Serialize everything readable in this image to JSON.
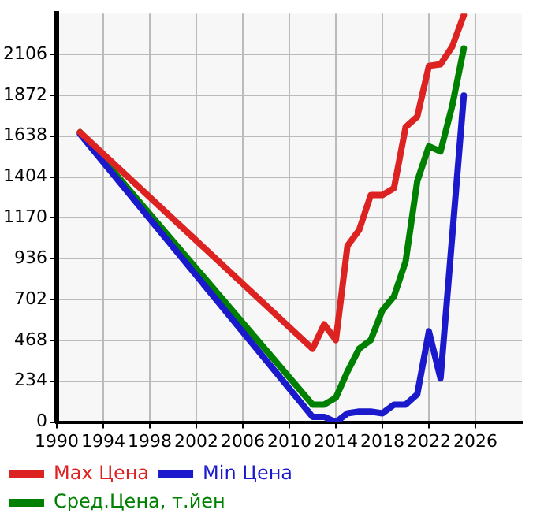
{
  "chart_data": {
    "type": "line",
    "x": [
      1992,
      2012,
      2013,
      2014,
      2015,
      2016,
      2017,
      2018,
      2019,
      2020,
      2021,
      2022,
      2023,
      2024,
      2025
    ],
    "series": [
      {
        "name": "Max Цена",
        "color": "#dd2222",
        "values": [
          1660,
          420,
          560,
          470,
          1010,
          1100,
          1300,
          1300,
          1340,
          1690,
          1750,
          2040,
          2050,
          2150,
          2330
        ]
      },
      {
        "name": "Min Цена",
        "color": "#1a1acc",
        "values": [
          1650,
          30,
          30,
          0,
          50,
          60,
          60,
          50,
          100,
          100,
          160,
          520,
          250,
          null,
          1870
        ]
      },
      {
        "name": "Сред.Цена, т.йен",
        "color": "#008000",
        "values": [
          1660,
          100,
          100,
          140,
          290,
          420,
          470,
          640,
          720,
          920,
          1380,
          1580,
          1550,
          1810,
          2140
        ]
      }
    ],
    "xlim": [
      1990,
      2030
    ],
    "xticks": [
      1990,
      1994,
      1998,
      2002,
      2006,
      2010,
      2014,
      2018,
      2022,
      2026
    ],
    "ylim": [
      0,
      2340
    ],
    "yticks": [
      0,
      234,
      468,
      702,
      936,
      1170,
      1404,
      1638,
      1872,
      2106
    ],
    "grid": true,
    "legend": "bottom",
    "marker": "none",
    "line_style": "solid"
  }
}
